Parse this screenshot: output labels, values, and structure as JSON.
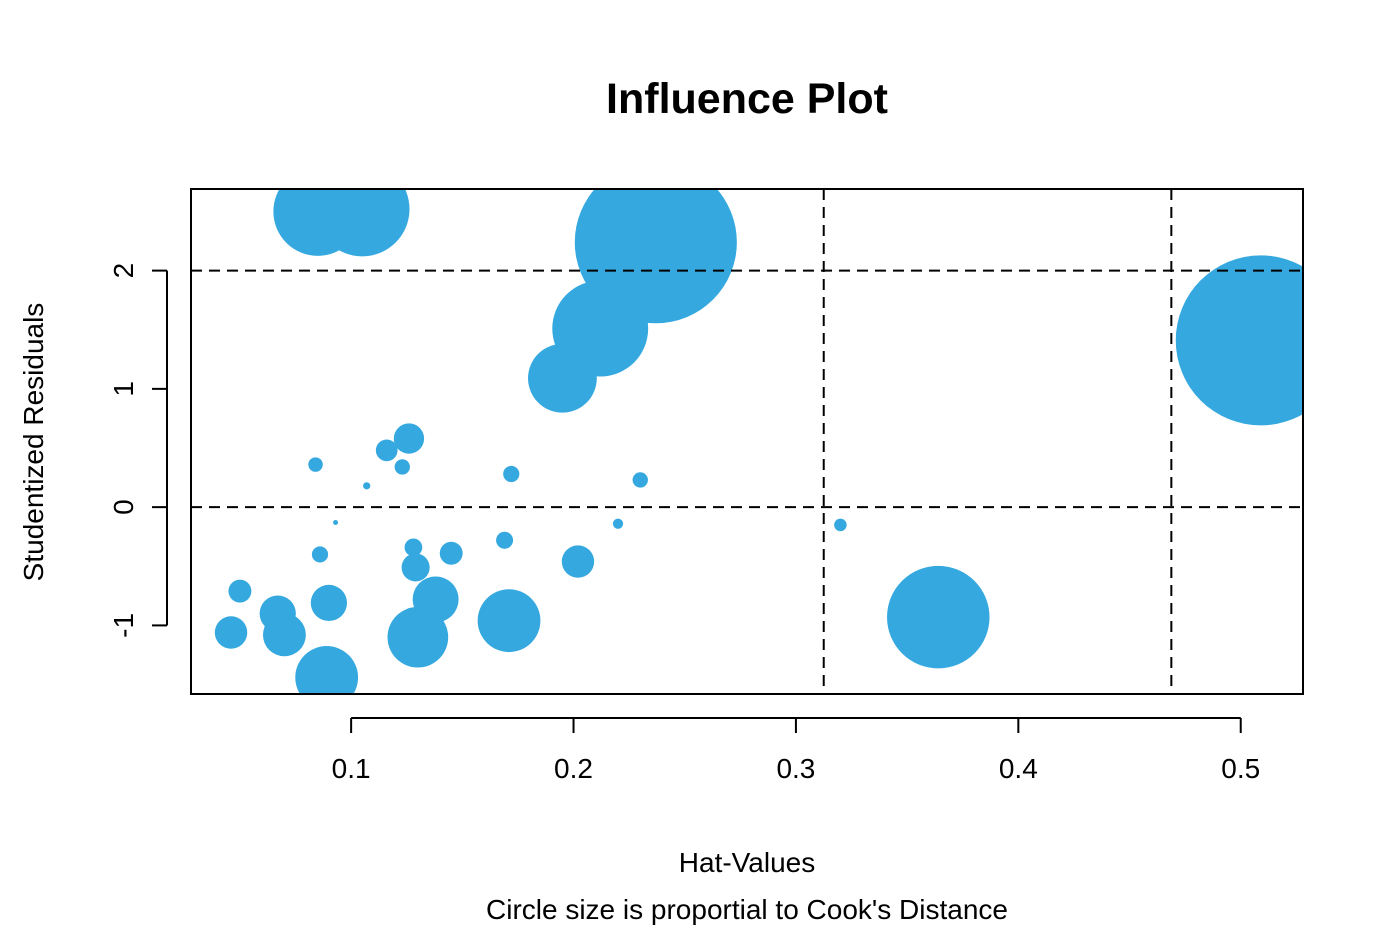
{
  "chart_data": {
    "type": "scatter",
    "title": "Influence Plot",
    "xlabel": "Hat-Values",
    "ylabel": "Studentized Residuals",
    "caption": "Circle size is proportial to Cook's Distance",
    "xlim": [
      0.028,
      0.528
    ],
    "ylim": [
      -1.58,
      2.69
    ],
    "x_ticks": [
      0.1,
      0.2,
      0.3,
      0.4,
      0.5
    ],
    "x_tick_labels": [
      "0.1",
      "0.2",
      "0.3",
      "0.4",
      "0.5"
    ],
    "y_ticks": [
      -1,
      0,
      1,
      2
    ],
    "y_tick_labels": [
      "-1",
      "0",
      "1",
      "2"
    ],
    "reference_lines": {
      "horizontal": [
        2,
        0
      ],
      "vertical": [
        0.3125,
        0.4688
      ],
      "style": "dashed"
    },
    "grid": false,
    "size_variable": "Cook's Distance",
    "colors": {
      "points": "#35a9df",
      "axes": "#000000",
      "reference_lines": "#000000"
    },
    "points": [
      {
        "x": 0.085,
        "y": 2.5,
        "size": 0.3
      },
      {
        "x": 0.105,
        "y": 2.52,
        "size": 0.34
      },
      {
        "x": 0.237,
        "y": 2.24,
        "size": 1.0
      },
      {
        "x": 0.212,
        "y": 1.51,
        "size": 0.35
      },
      {
        "x": 0.195,
        "y": 1.09,
        "size": 0.18
      },
      {
        "x": 0.509,
        "y": 1.41,
        "size": 1.1
      },
      {
        "x": 0.084,
        "y": 0.36,
        "size": 0.008
      },
      {
        "x": 0.116,
        "y": 0.48,
        "size": 0.018
      },
      {
        "x": 0.126,
        "y": 0.58,
        "size": 0.035
      },
      {
        "x": 0.123,
        "y": 0.34,
        "size": 0.009
      },
      {
        "x": 0.107,
        "y": 0.18,
        "size": 0.002
      },
      {
        "x": 0.172,
        "y": 0.28,
        "size": 0.01
      },
      {
        "x": 0.23,
        "y": 0.23,
        "size": 0.009
      },
      {
        "x": 0.093,
        "y": -0.13,
        "size": 0.0006
      },
      {
        "x": 0.22,
        "y": -0.14,
        "size": 0.004
      },
      {
        "x": 0.32,
        "y": -0.15,
        "size": 0.006
      },
      {
        "x": 0.086,
        "y": -0.4,
        "size": 0.01
      },
      {
        "x": 0.128,
        "y": -0.34,
        "size": 0.012
      },
      {
        "x": 0.145,
        "y": -0.39,
        "size": 0.02
      },
      {
        "x": 0.169,
        "y": -0.28,
        "size": 0.011
      },
      {
        "x": 0.202,
        "y": -0.46,
        "size": 0.04
      },
      {
        "x": 0.129,
        "y": -0.51,
        "size": 0.03
      },
      {
        "x": 0.05,
        "y": -0.71,
        "size": 0.02
      },
      {
        "x": 0.067,
        "y": -0.9,
        "size": 0.05
      },
      {
        "x": 0.09,
        "y": -0.81,
        "size": 0.05
      },
      {
        "x": 0.138,
        "y": -0.78,
        "size": 0.08
      },
      {
        "x": 0.046,
        "y": -1.06,
        "size": 0.04
      },
      {
        "x": 0.07,
        "y": -1.08,
        "size": 0.07
      },
      {
        "x": 0.13,
        "y": -1.1,
        "size": 0.14
      },
      {
        "x": 0.171,
        "y": -0.96,
        "size": 0.15
      },
      {
        "x": 0.089,
        "y": -1.44,
        "size": 0.15
      },
      {
        "x": 0.364,
        "y": -0.93,
        "size": 0.4
      }
    ]
  }
}
